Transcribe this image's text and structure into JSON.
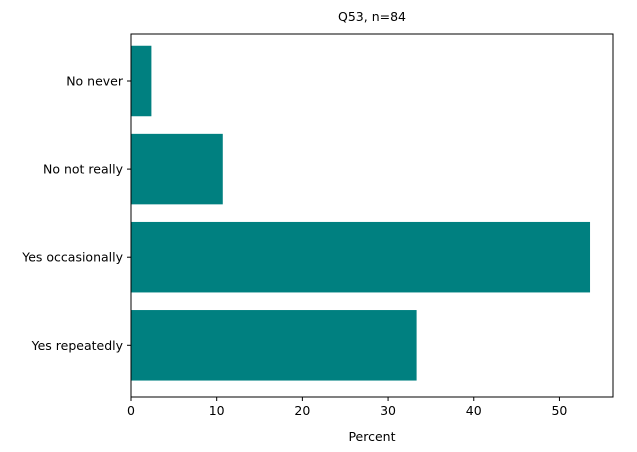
{
  "chart_data": {
    "type": "bar",
    "orientation": "horizontal",
    "title": "Q53, n=84",
    "xlabel": "Percent",
    "ylabel": "",
    "categories": [
      "No never",
      "No not really",
      "Yes occasionally",
      "Yes repeatedly"
    ],
    "values": [
      2.38,
      10.71,
      53.57,
      33.33
    ],
    "xlim": [
      0,
      56.25
    ],
    "xticks": [
      0,
      10,
      20,
      30,
      40,
      50
    ],
    "grid": false,
    "bar_color": "#008080"
  }
}
